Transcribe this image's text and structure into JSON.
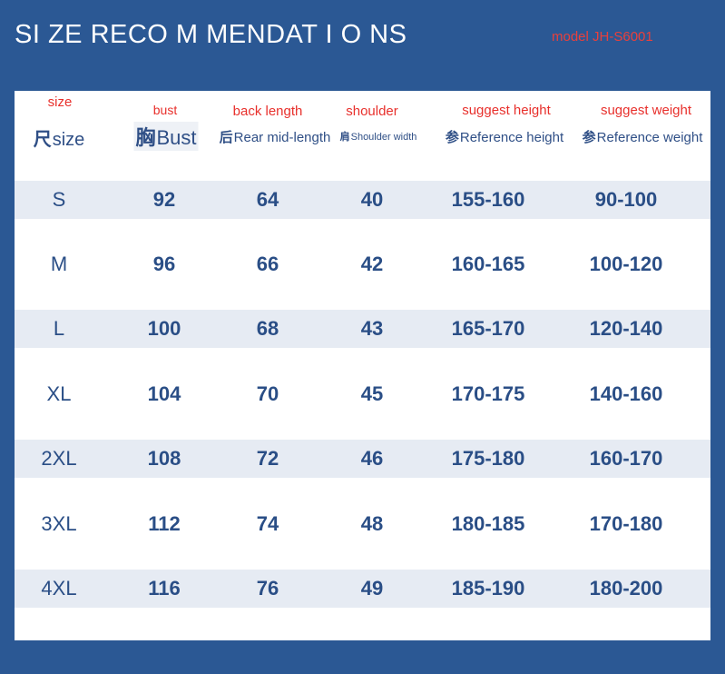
{
  "header": {
    "title": "SI ZE RECO M MENDAT I O NS",
    "model": "model JH-S6001"
  },
  "columns": [
    {
      "red": "size",
      "label": "size"
    },
    {
      "red": "bust",
      "label": "Bust"
    },
    {
      "red": "back length",
      "label": "Rear mid-length"
    },
    {
      "red": "shoulder",
      "label": "Shoulder width"
    },
    {
      "red": "suggest height",
      "label": "Reference height"
    },
    {
      "red": "suggest weight",
      "label": "Reference weight"
    }
  ],
  "rows": [
    {
      "size": "S",
      "bust": "92",
      "back": "64",
      "shoulder": "40",
      "height": "155-160",
      "weight": "90-100"
    },
    {
      "size": "M",
      "bust": "96",
      "back": "66",
      "shoulder": "42",
      "height": "160-165",
      "weight": "100-120"
    },
    {
      "size": "L",
      "bust": "100",
      "back": "68",
      "shoulder": "43",
      "height": "165-170",
      "weight": "120-140"
    },
    {
      "size": "XL",
      "bust": "104",
      "back": "70",
      "shoulder": "45",
      "height": "170-175",
      "weight": "140-160"
    },
    {
      "size": "2XL",
      "bust": "108",
      "back": "72",
      "shoulder": "46",
      "height": "175-180",
      "weight": "160-170"
    },
    {
      "size": "3XL",
      "bust": "112",
      "back": "74",
      "shoulder": "48",
      "height": "180-185",
      "weight": "170-180"
    },
    {
      "size": "4XL",
      "bust": "116",
      "back": "76",
      "shoulder": "49",
      "height": "185-190",
      "weight": "180-200"
    }
  ]
}
